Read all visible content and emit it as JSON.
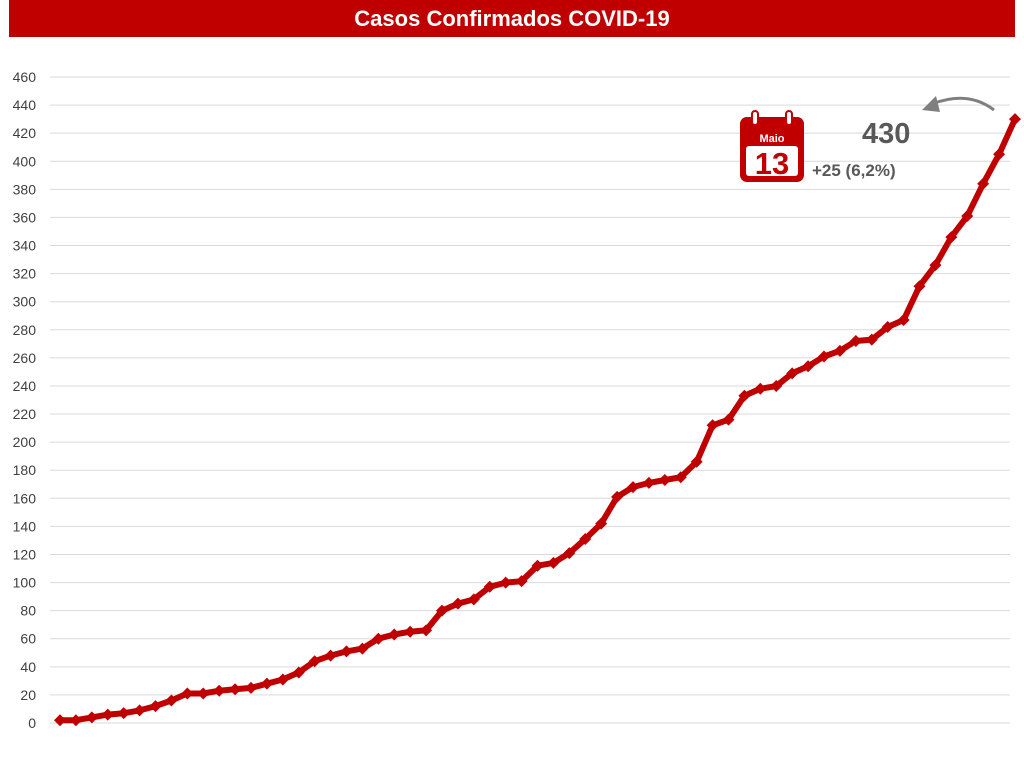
{
  "colors": {
    "title_bar": "#c00000",
    "series_line": "#c00000",
    "grid": "#d9d9d9",
    "annotation_text": "#595959"
  },
  "chart_data": {
    "type": "line",
    "title": "Casos Confirmados COVID-19",
    "xlabel": "",
    "ylabel": "",
    "ylim": [
      0,
      460
    ],
    "y_ticks": [
      0,
      20,
      40,
      60,
      80,
      100,
      120,
      140,
      160,
      180,
      200,
      220,
      240,
      260,
      280,
      300,
      320,
      340,
      360,
      380,
      400,
      420,
      440,
      460
    ],
    "grid": true,
    "x_tick_labels": false,
    "series": [
      {
        "values": [
          2,
          2,
          4,
          6,
          7,
          9,
          12,
          16,
          21,
          21,
          23,
          24,
          25,
          28,
          31,
          36,
          44,
          48,
          51,
          53,
          60,
          63,
          65,
          66,
          80,
          85,
          88,
          97,
          100,
          101,
          112,
          114,
          121,
          131,
          142,
          161,
          168,
          171,
          173,
          175,
          186,
          212,
          216,
          233,
          238,
          240,
          249,
          254,
          261,
          265,
          272,
          273,
          282,
          287,
          311,
          326,
          346,
          361,
          384,
          405,
          430
        ]
      }
    ],
    "annotation": {
      "month": "Maio",
      "day": "13",
      "value": "430",
      "change": "+25 (6,2%)",
      "icon": "calendar-icon",
      "arrow": "curved-arrow-icon"
    }
  }
}
